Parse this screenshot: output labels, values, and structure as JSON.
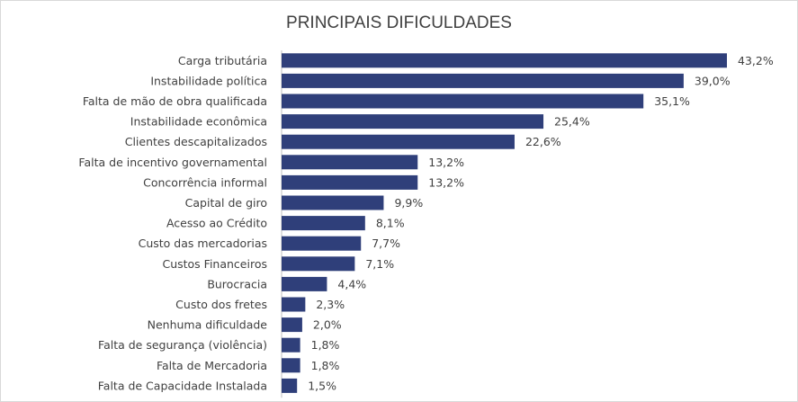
{
  "chart_data": {
    "type": "bar",
    "orientation": "horizontal",
    "title": "PRINCIPAIS DIFICULDADES",
    "categories": [
      "Carga tributária",
      "Instabilidade política",
      "Falta de mão de obra qualificada",
      "Instabilidade econômica",
      "Clientes descapitalizados",
      "Falta de incentivo governamental",
      "Concorrência informal",
      "Capital de giro",
      "Acesso ao Crédito",
      "Custo das mercadorias",
      "Custos Financeiros",
      "Burocracia",
      "Custo dos fretes",
      "Nenhuma dificuldade",
      "Falta de segurança (violência)",
      "Falta de Mercadoria",
      "Falta de Capacidade Instalada"
    ],
    "values": [
      43.2,
      39.0,
      35.1,
      25.4,
      22.6,
      13.2,
      13.2,
      9.9,
      8.1,
      7.7,
      7.1,
      4.4,
      2.3,
      2.0,
      1.8,
      1.8,
      1.5
    ],
    "data_labels": [
      "43,2%",
      "39,0%",
      "35,1%",
      "25,4%",
      "22,6%",
      "13,2%",
      "13,2%",
      "9,9%",
      "8,1%",
      "7,7%",
      "7,1%",
      "4,4%",
      "2,3%",
      "2,0%",
      "1,8%",
      "1,8%",
      "1,5%"
    ],
    "unit": "%",
    "bar_color": "#2f3f7a",
    "grid": false,
    "legend": "none"
  }
}
